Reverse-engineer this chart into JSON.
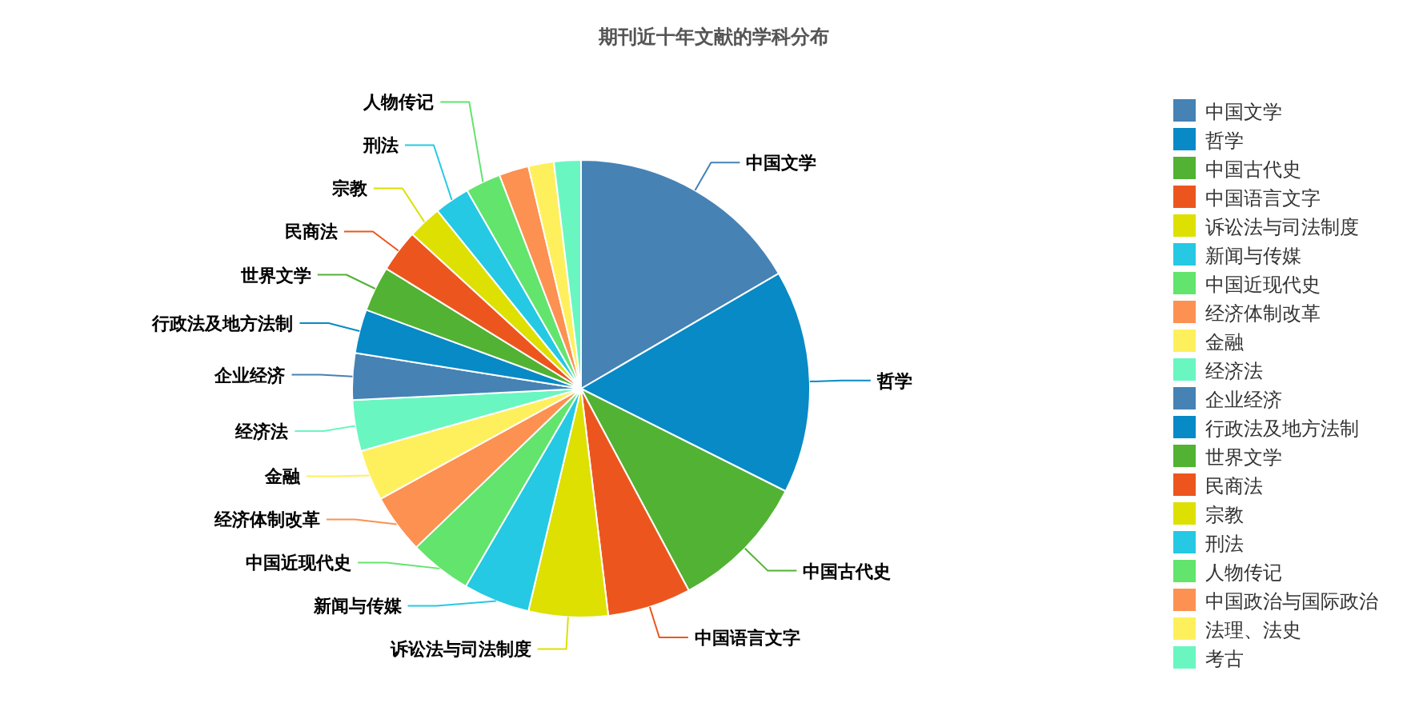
{
  "chart_data": {
    "type": "pie",
    "title": "期刊近十年文献的学科分布",
    "categories": [
      "中国文学",
      "哲学",
      "中国古代史",
      "中国语言文字",
      "诉讼法与司法制度",
      "新闻与传媒",
      "中国近现代史",
      "经济体制改革",
      "金融",
      "经济法",
      "企业经济",
      "行政法及地方法制",
      "世界文学",
      "民商法",
      "宗教",
      "刑法",
      "人物传记",
      "中国政治与国际政治",
      "法理、法史",
      "考古"
    ],
    "values": [
      16.6,
      15.8,
      9.8,
      5.9,
      5.6,
      4.7,
      4.4,
      4.2,
      3.6,
      3.6,
      3.3,
      3.1,
      3.2,
      3.0,
      2.4,
      2.5,
      2.5,
      2.1,
      1.8,
      1.9
    ],
    "colors": [
      "#4682b4",
      "#078ac6",
      "#52b233",
      "#ec561e",
      "#dde000",
      "#25c9e3",
      "#62e46d",
      "#fc9152",
      "#fef05d",
      "#6af6c1",
      "#4682b4",
      "#078ac6",
      "#52b233",
      "#ec561e",
      "#dde000",
      "#25c9e3",
      "#62e46d",
      "#fc9152",
      "#fef05d",
      "#6af6c1"
    ],
    "legend": "right"
  }
}
